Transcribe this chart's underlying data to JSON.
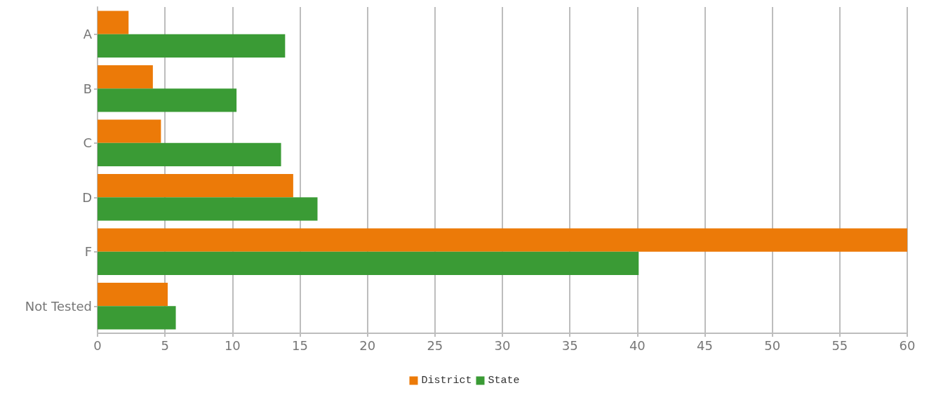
{
  "chart_data": {
    "type": "bar",
    "orientation": "horizontal",
    "categories": [
      "A",
      "B",
      "C",
      "D",
      "F",
      "Not Tested"
    ],
    "series": [
      {
        "name": "District",
        "color": "#ec7a08",
        "values": [
          2.3,
          4.1,
          4.7,
          14.5,
          60,
          5.2
        ]
      },
      {
        "name": "State",
        "color": "#3a9b35",
        "values": [
          13.9,
          10.3,
          13.6,
          16.3,
          40.1,
          5.8
        ]
      }
    ],
    "xlim": [
      0,
      60
    ],
    "xticks": [
      0,
      5,
      10,
      15,
      20,
      25,
      30,
      35,
      40,
      45,
      50,
      55,
      60
    ],
    "grid": "x",
    "legend": "bottom"
  }
}
